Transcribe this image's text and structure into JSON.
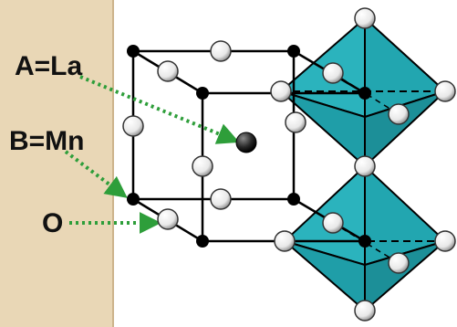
{
  "labels": {
    "a_site": "A=La",
    "b_site": "B=Mn",
    "oxygen": "O"
  },
  "colors": {
    "panel": "#e9d7b6",
    "panel_edge": "#cdb48c",
    "octahedron": "#2bb3bd",
    "octahedron_dark": "#1c8f98",
    "arrow": "#2e9e3a",
    "atom_oxygen": "#f4f4f4",
    "atom_a": "#222222",
    "atom_b": "#000000"
  }
}
